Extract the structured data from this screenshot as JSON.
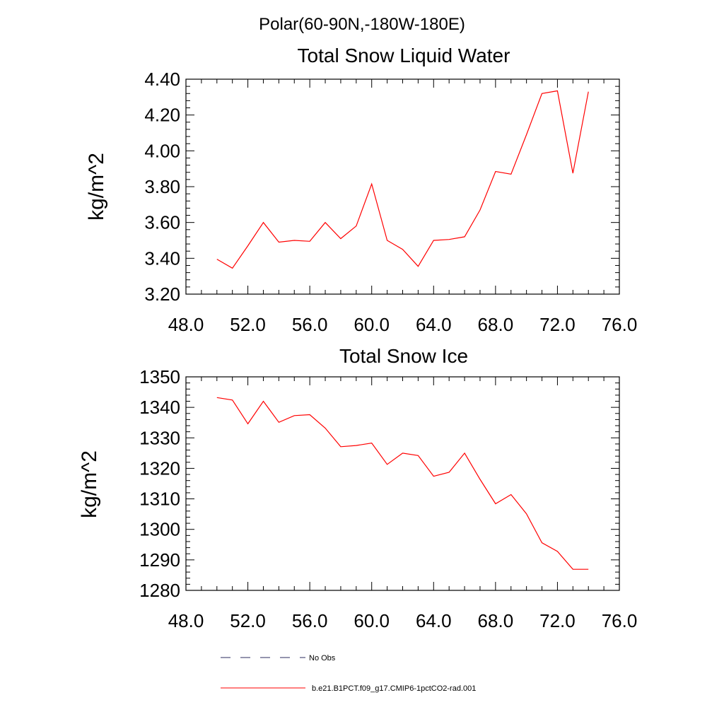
{
  "supertitle": "Polar(60-90N,-180W-180E)",
  "legend": {
    "obs_label": "No Obs",
    "obs_color": "#2b2b5e",
    "model_label": "b.e21.B1PCT.f09_g17.CMIP6-1pctCO2-rad.001",
    "model_color": "#ff0000"
  },
  "chart_data": [
    {
      "type": "line",
      "title": "Total Snow Liquid Water",
      "xlabel": "",
      "ylabel": "kg/m^2",
      "xlim": [
        48,
        76
      ],
      "ylim": [
        3.2,
        4.4
      ],
      "xticks": [
        "48.0",
        "52.0",
        "56.0",
        "60.0",
        "64.0",
        "68.0",
        "72.0",
        "76.0"
      ],
      "yticks": [
        "3.20",
        "3.40",
        "3.60",
        "3.80",
        "4.00",
        "4.20",
        "4.40"
      ],
      "grid": false,
      "series": [
        {
          "x": [
            50,
            51,
            52,
            53,
            54,
            55,
            56,
            57,
            58,
            59,
            60,
            61,
            62,
            63,
            64,
            65,
            66,
            67,
            68,
            69,
            70,
            71,
            72,
            73,
            74
          ],
          "values": [
            3.395,
            3.345,
            3.47,
            3.6,
            3.49,
            3.5,
            3.495,
            3.6,
            3.51,
            3.58,
            3.815,
            3.5,
            3.45,
            3.355,
            3.5,
            3.505,
            3.52,
            3.67,
            3.885,
            3.87,
            4.09,
            4.32,
            4.335,
            3.875,
            4.33
          ]
        }
      ]
    },
    {
      "type": "line",
      "title": "Total Snow Ice",
      "xlabel": "",
      "ylabel": "kg/m^2",
      "xlim": [
        48,
        76
      ],
      "ylim": [
        1280,
        1350
      ],
      "xticks": [
        "48.0",
        "52.0",
        "56.0",
        "60.0",
        "64.0",
        "68.0",
        "72.0",
        "76.0"
      ],
      "yticks": [
        "1280",
        "1290",
        "1300",
        "1310",
        "1320",
        "1330",
        "1340",
        "1350"
      ],
      "grid": false,
      "series": [
        {
          "x": [
            50,
            51,
            52,
            53,
            54,
            55,
            56,
            57,
            58,
            59,
            60,
            61,
            62,
            63,
            64,
            65,
            66,
            67,
            68,
            69,
            70,
            71,
            72,
            73,
            74
          ],
          "values": [
            1343.2,
            1342.4,
            1334.6,
            1342.0,
            1335.1,
            1337.3,
            1337.6,
            1333.2,
            1327.1,
            1327.5,
            1328.3,
            1321.3,
            1325.0,
            1324.2,
            1317.4,
            1318.7,
            1325.0,
            1316.4,
            1308.4,
            1311.4,
            1305.1,
            1295.6,
            1292.8,
            1286.9,
            1286.9
          ]
        }
      ]
    }
  ]
}
